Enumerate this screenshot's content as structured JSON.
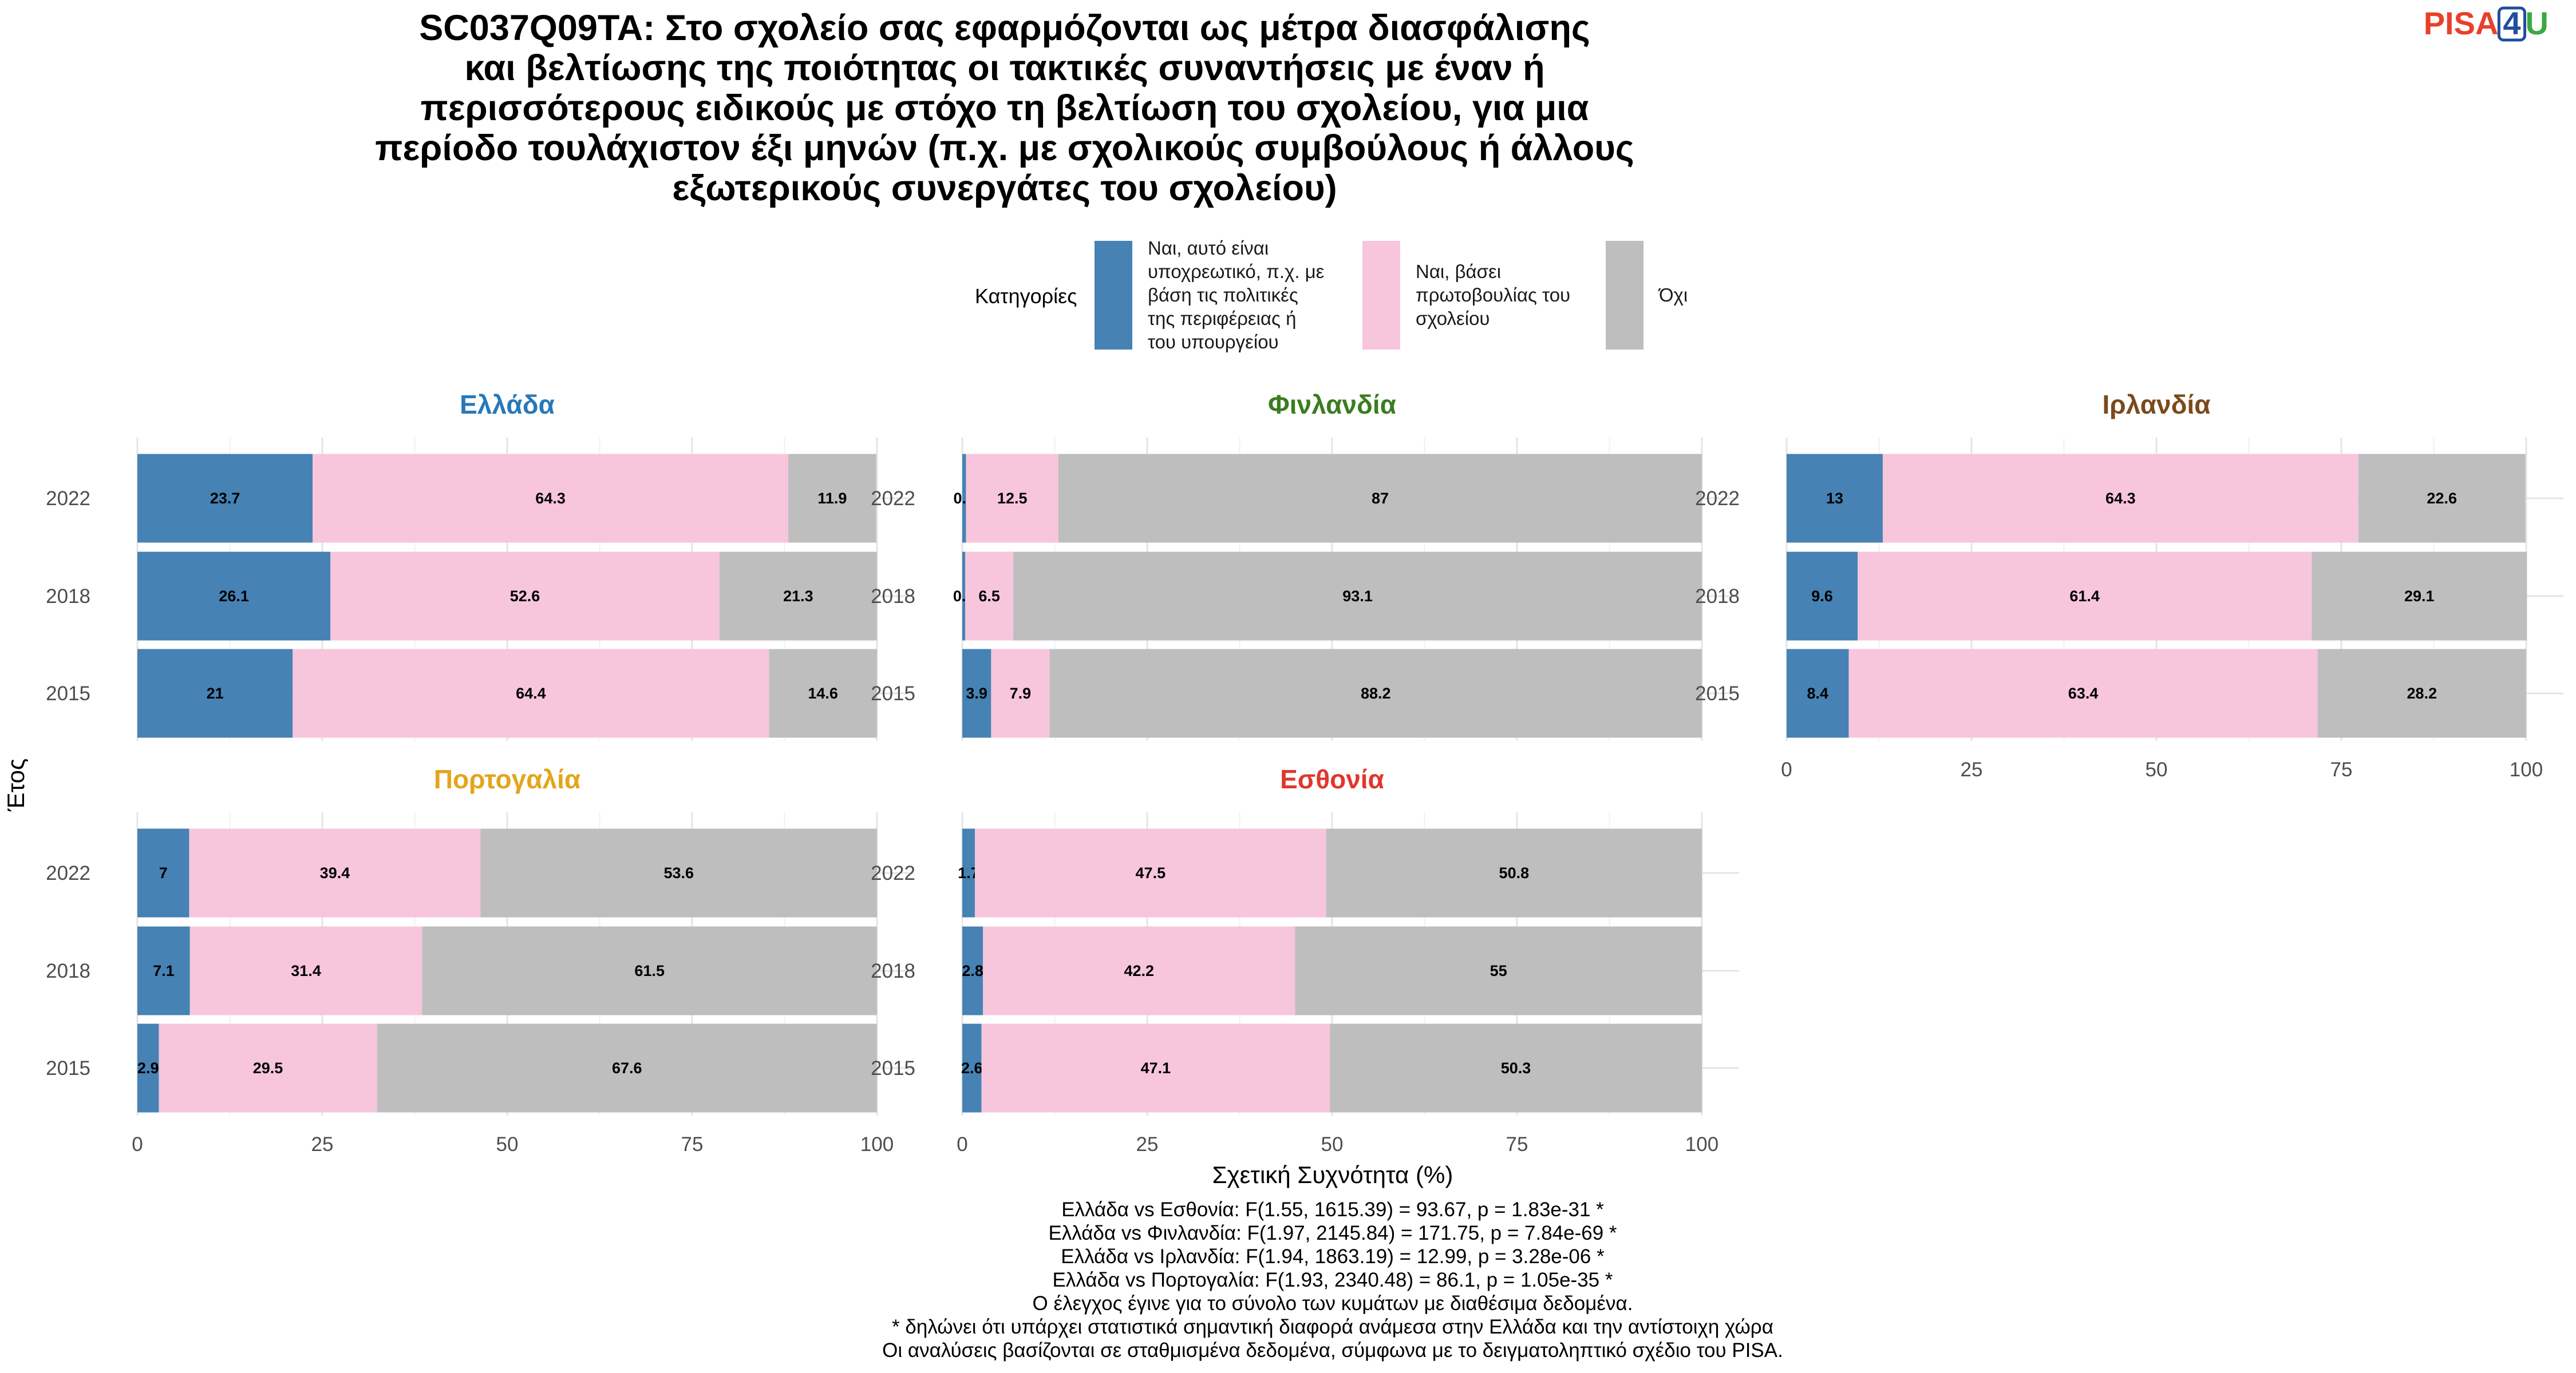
{
  "title_lines": [
    "SC037Q09TA: Στο σχολείο σας εφαρμόζονται ως μέτρα διασφάλισης",
    "και βελτίωσης της ποιότητας οι τακτικές συναντήσεις με έναν ή",
    "περισσότερους ειδικούς με στόχο τη βελτίωση του σχολείου, για μια",
    "περίοδο τουλάχιστον έξι μηνών (π.χ. με σχολικούς συμβούλους ή άλλους",
    "εξωτερικούς συνεργάτες του σχολείου)"
  ],
  "logo": {
    "prefix": "PISA",
    "digit": "4",
    "suffix": "U",
    "prefix_color": "#e8402a",
    "digit_color": "#1f4e9c",
    "suffix_color": "#3aa843"
  },
  "legend": {
    "title": "Κατηγορίες",
    "items": [
      {
        "lines": [
          "Ναι, αυτό είναι",
          "υποχρεωτικό, π.χ. με",
          "βάση τις πολιτικές",
          "της περιφέρειας ή",
          "του υπουργείου"
        ],
        "color": "#4682b4"
      },
      {
        "lines": [
          "Ναι, βάσει",
          "πρωτοβουλίας του",
          "σχολείου"
        ],
        "color": "#f7c6dc"
      },
      {
        "lines": [
          "Όχι"
        ],
        "color": "#bebebe"
      }
    ]
  },
  "y_axis_title": "Έτος",
  "x_axis_title": "Σχετική Συχνότητα (%)",
  "caption_lines": [
    "Ελλάδα vs Εσθονία: F(1.55, 1615.39) = 93.67, p = 1.83e-31 *",
    "Ελλάδα vs Φινλανδία: F(1.97, 2145.84) = 171.75, p = 7.84e-69 *",
    "Ελλάδα vs Ιρλανδία: F(1.94, 1863.19) = 12.99, p = 3.28e-06 *",
    "Ελλάδα vs Πορτογαλία: F(1.93, 2340.48) = 86.1, p = 1.05e-35 *",
    "Ο έλεγχος έγινε για το σύνολο των κυμάτων με διαθέσιμα δεδομένα.",
    "* δηλώνει ότι υπάρχει στατιστικά σημαντική διαφορά ανάμεσα στην Ελλάδα και την αντίστοιχη χώρα",
    "Οι αναλύσεις βασίζονται σε σταθμισμένα δεδομένα, σύμφωνα με το δειγματοληπτικό σχέδιο του PISA."
  ],
  "chart_data": {
    "type": "bar",
    "orientation": "horizontal",
    "stacked": true,
    "xlim": [
      0,
      100
    ],
    "x_ticks": [
      0,
      25,
      50,
      75,
      100
    ],
    "categories": [
      "2022",
      "2018",
      "2015"
    ],
    "series_colors": [
      "#4682b4",
      "#f7c6dc",
      "#bebebe"
    ],
    "grid": true,
    "legend_position": "top",
    "panels": [
      {
        "title": "Ελλάδα",
        "title_color": "#2878b8",
        "values": [
          [
            23.7,
            64.3,
            11.9
          ],
          [
            26.1,
            52.6,
            21.3
          ],
          [
            21,
            64.4,
            14.6
          ]
        ]
      },
      {
        "title": "Φινλανδία",
        "title_color": "#3a7d1f",
        "values": [
          [
            0.5,
            12.5,
            87
          ],
          [
            0.4,
            6.5,
            93.1
          ],
          [
            3.9,
            7.9,
            88.2
          ]
        ]
      },
      {
        "title": "Ιρλανδία",
        "title_color": "#7a4a1c",
        "values": [
          [
            13,
            64.3,
            22.6
          ],
          [
            9.6,
            61.4,
            29.1
          ],
          [
            8.4,
            63.4,
            28.2
          ]
        ]
      },
      {
        "title": "Πορτογαλία",
        "title_color": "#e3a51b",
        "values": [
          [
            7,
            39.4,
            53.6
          ],
          [
            7.1,
            31.4,
            61.5
          ],
          [
            2.9,
            29.5,
            67.6
          ]
        ]
      },
      {
        "title": "Εσθονία",
        "title_color": "#e1362d",
        "values": [
          [
            1.7,
            47.5,
            50.8
          ],
          [
            2.8,
            42.2,
            55
          ],
          [
            2.6,
            47.1,
            50.3
          ]
        ]
      }
    ]
  }
}
